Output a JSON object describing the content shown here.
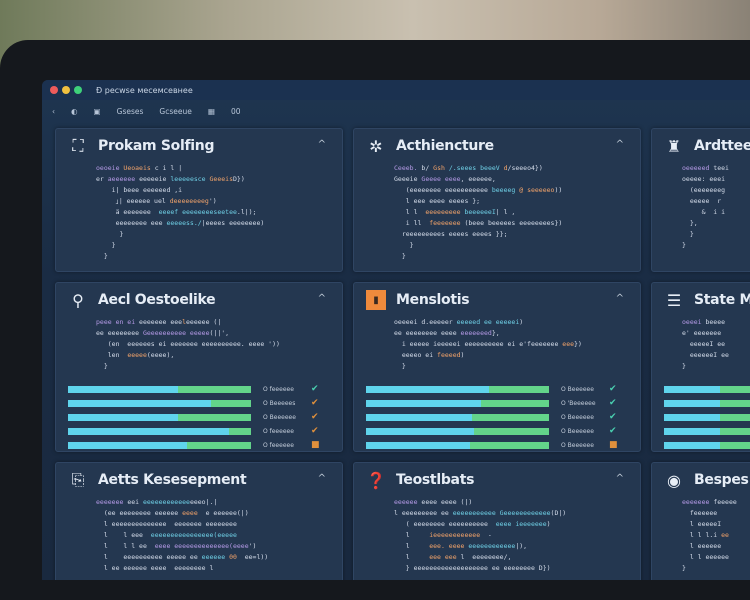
{
  "window": {
    "title": "Ð ресwsе месемсевнее",
    "controls": [
      "#ee5b5b",
      "#f0c040",
      "#3ed07a"
    ]
  },
  "toolbar": {
    "items": [
      "‹",
      "◐",
      "▣",
      "Gsesеs",
      "Gcseeue",
      "▦",
      "00"
    ]
  },
  "panels": [
    {
      "title": "Prokam Solfing",
      "icon": "puzzle-icon",
      "glyph": "⛶",
      "code": [
        [
          [
            "k",
            "oeoeie "
          ],
          [
            "o",
            "Ueoaeis "
          ],
          [
            "",
            "c i l |"
          ]
        ],
        [
          [
            "",
            "er "
          ],
          [
            "k",
            "aeeeeee "
          ],
          [
            "",
            "eeeeeie "
          ],
          [
            "s",
            "leeeeesce "
          ],
          [
            "o",
            "Geeeis"
          ],
          [
            "",
            "D})"
          ]
        ],
        [
          [
            "",
            "    i| beee eeeeeed ,i"
          ]
        ],
        [
          [
            "",
            "     ｣| eeeeee uel "
          ],
          [
            "o",
            "deeeeeeeeg"
          ],
          [
            "",
            "')"
          ]
        ],
        [
          [
            "",
            "     ä eeeeeee  "
          ],
          [
            "s",
            "eeeef eeeeeeeeseetee"
          ],
          [
            "",
            ".l|);"
          ]
        ],
        [
          [
            "",
            "     eeeeeeee eee "
          ],
          [
            "s",
            "eeeeess./"
          ],
          [
            "",
            "|eeees eeeeeeee)"
          ]
        ],
        [
          [
            "",
            "      }"
          ]
        ],
        [
          [
            "",
            "    }"
          ]
        ],
        [
          [
            "",
            "  }"
          ]
        ]
      ]
    },
    {
      "title": "Acthiencture",
      "icon": "gear-icon",
      "glyph": "✲",
      "code": [
        [
          [
            "k",
            "Ceeeb. "
          ],
          [
            "",
            "b/ "
          ],
          [
            "o",
            "Gsh "
          ],
          [
            "s",
            "/.seees beeeV "
          ],
          [
            "o",
            "d"
          ],
          [
            "",
            "/seeeo4})"
          ]
        ],
        [
          [
            "",
            "Geeeie "
          ],
          [
            "k",
            "Geeee eeee"
          ],
          [
            "",
            ", eeeeee,"
          ]
        ],
        [
          [
            "",
            "   (eeeeeeee eeeeeeeeeee "
          ],
          [
            "s",
            "beeeeg"
          ],
          [
            "o",
            " @ seeeeeo"
          ],
          [
            "",
            "))"
          ]
        ],
        [
          [
            "",
            "   l eee eeee eeees };"
          ]
        ],
        [
          [
            "",
            "   l l  "
          ],
          [
            "o",
            "eeeeeeeee "
          ],
          [
            "s",
            "beeeeeeI"
          ],
          [
            "",
            "| l ,"
          ]
        ],
        [
          [
            "",
            "   i ll  "
          ],
          [
            "o",
            "feeeeeee "
          ],
          [
            "",
            "(beee beeeees eeeeeeees})"
          ]
        ],
        [
          [
            "",
            "  reeeeeeeees eeees eeees }};"
          ]
        ],
        [
          [
            "",
            "    }"
          ]
        ],
        [
          [
            "",
            "  }"
          ]
        ]
      ]
    },
    {
      "title": "Ardtteec",
      "icon": "org-chart-icon",
      "glyph": "♜",
      "code": [
        [
          [
            "k",
            "oeeeeed "
          ],
          [
            "",
            "teei"
          ]
        ],
        [
          [
            "",
            "oeeee: eeei"
          ]
        ],
        [
          [
            "",
            "  (eeeeeeeg"
          ]
        ],
        [
          [
            "",
            "  eeeee  r  "
          ]
        ],
        [
          [
            "",
            "     &  i i"
          ]
        ],
        [
          [
            "",
            "  },"
          ]
        ],
        [
          [
            "",
            "  }"
          ]
        ],
        [
          [
            "",
            "}"
          ]
        ]
      ]
    },
    {
      "title": "Aecl Oestoelike",
      "icon": "search-icon",
      "glyph": "⚲",
      "code": [
        [
          [
            "k",
            "peee en ei "
          ],
          [
            "",
            "eeeeeee eee"
          ],
          [
            "o",
            "l"
          ],
          [
            "",
            "eeeeee (|"
          ]
        ],
        [
          [
            "",
            "ee eeeeeeee "
          ],
          [
            "k",
            "Geeeeeeeeee eeeee"
          ],
          [
            "",
            "(||',"
          ]
        ],
        [
          [
            "",
            "   (en  eeeeees ei eeeeeee eeeeeeeeee. eeee '))"
          ]
        ],
        [
          [
            "",
            "   len  "
          ],
          [
            "o",
            "eeeee"
          ],
          [
            "",
            "(eeee),"
          ]
        ],
        [
          [
            "",
            "  }"
          ]
        ]
      ],
      "bars": [
        {
          "label": "O feeeeee",
          "fill": 0.6,
          "status": "check",
          "color": "#4ad0b0"
        },
        {
          "label": "O Beeeees",
          "fill": 0.78,
          "status": "check",
          "color": "#e0903c"
        },
        {
          "label": "O Beeeeee",
          "fill": 0.6,
          "status": "check",
          "color": "#e0903c"
        },
        {
          "label": "O feeeeee",
          "fill": 0.88,
          "status": "check",
          "color": "#e0903c"
        },
        {
          "label": "O feeeeee",
          "fill": 0.65,
          "status": "square",
          "color": "#e0903c"
        }
      ]
    },
    {
      "title": "Menslotis",
      "icon": "document-icon",
      "glyph": "▮",
      "code": [
        [
          [
            "",
            "oeeeei d.eeeeer "
          ],
          [
            "s",
            "eeeeed ee eeeeei"
          ],
          [
            "",
            ")"
          ]
        ],
        [
          [
            "",
            "ee eeeeeeee eeee "
          ],
          [
            "k",
            "eeeeeeed"
          ],
          [
            "",
            "},"
          ]
        ],
        [
          [
            "",
            "  i eeeee ieeeeei eeeeeeeeee ei e'feeeeeee "
          ],
          [
            "o",
            "eee"
          ],
          [
            "",
            "})"
          ]
        ],
        [
          [
            "",
            "  eeeeo ei "
          ],
          [
            "o",
            "feeeed"
          ],
          [
            "",
            ")"
          ]
        ],
        [
          [
            "",
            "  }"
          ]
        ]
      ],
      "bars": [
        {
          "label": "O Beeeeee",
          "fill": 0.67,
          "status": "check",
          "color": "#4ad0b0"
        },
        {
          "label": "O 'Beeeeee",
          "fill": 0.63,
          "status": "check",
          "color": "#4ad0b0"
        },
        {
          "label": "O Beeeeee",
          "fill": 0.58,
          "status": "check",
          "color": "#4ad0b0"
        },
        {
          "label": "O Beeeeee",
          "fill": 0.59,
          "status": "check",
          "color": "#4ad0b0"
        },
        {
          "label": "O Beeeeee",
          "fill": 0.57,
          "status": "square",
          "color": "#e0903c"
        }
      ]
    },
    {
      "title": "State Ma",
      "icon": "list-icon",
      "glyph": "☰",
      "code": [
        [
          [
            "k",
            "oeeei "
          ],
          [
            "",
            "beeee"
          ]
        ],
        [
          [
            "",
            "e' eeeeeee"
          ]
        ],
        [
          [
            "",
            "  eeeeeI ee"
          ]
        ],
        [
          [
            "",
            "  eeeeeeI ee"
          ]
        ],
        [
          [
            "",
            "}"
          ]
        ]
      ],
      "bars": [
        {
          "fill": 0.6
        },
        {
          "fill": 0.6
        },
        {
          "fill": 0.6
        },
        {
          "fill": 0.6
        },
        {
          "fill": 0.6
        }
      ]
    },
    {
      "title": "Aetts Kesesepment",
      "icon": "clipboard-icon",
      "glyph": "⎘",
      "code": [
        [
          [
            "k",
            "eeeeeee "
          ],
          [
            "",
            "eei "
          ],
          [
            "s",
            "eeeeeeeeeeee"
          ],
          [
            "",
            "eeeo|.|"
          ]
        ],
        [
          [
            "",
            "  (ee eeeeeeee eeeeee "
          ],
          [
            "o",
            "eeee"
          ],
          [
            "",
            "  e eeeeee(|)"
          ]
        ],
        [
          [
            "",
            "  l eeeeeeeeeeeeee  eeeeeee eeeeeeee"
          ]
        ],
        [
          [
            "",
            "  l    l eee  "
          ],
          [
            "s",
            "eeeeeeeeeeeeeeee(eeeee"
          ],
          [
            "",
            ""
          ]
        ],
        [
          [
            "",
            "  l    l l ee  "
          ],
          [
            "k",
            "eeee eeeeeeeeeeeeee(eeee"
          ],
          [
            "",
            "')"
          ]
        ],
        [
          [
            "",
            "  l    eeeeeeeeee eeeee ee "
          ],
          [
            "s",
            "eeeeee "
          ],
          [
            "o",
            "00"
          ],
          [
            "",
            "  ee=l))"
          ]
        ],
        [
          [
            "",
            "  l ee eeeeee eeee  eeeeeeee l"
          ]
        ]
      ]
    },
    {
      "title": "Teostlbats",
      "icon": "chat-icon",
      "glyph": "❓",
      "code": [
        [
          [
            "k",
            "eeeeee "
          ],
          [
            "",
            "eeee eeee (|)"
          ]
        ],
        [
          [
            "",
            "l eeeeeeeee ee "
          ],
          [
            "s",
            "eeeeeeeeeee Geeeeeeeeeeee"
          ],
          [
            "",
            "(D|)"
          ]
        ],
        [
          [
            "",
            "   ( eeeeeeee eeeeeeeeee  "
          ],
          [
            "s",
            "eeee ieeeeeee"
          ],
          [
            "",
            ")"
          ]
        ],
        [
          [
            "",
            "   l     "
          ],
          [
            "o",
            "ieeeeeeeeeeee"
          ],
          [
            "",
            "  -"
          ]
        ],
        [
          [
            "",
            "   l     "
          ],
          [
            "o",
            "eee. eeee "
          ],
          [
            "s",
            "eeeeeeeeeeee"
          ],
          [
            "",
            "|),"
          ]
        ],
        [
          [
            "",
            "   l     "
          ],
          [
            "o",
            "eee eee "
          ],
          [
            "",
            "l  eeeeeeee/,"
          ]
        ],
        [
          [
            "",
            "   } eeeeeeeeeeeeeeeeeee ee eeeeeeee D})"
          ]
        ]
      ]
    },
    {
      "title": "Bespes E",
      "icon": "help-icon",
      "glyph": "◉",
      "code": [
        [
          [
            "k",
            "eeeeeee "
          ],
          [
            "",
            "feeeee"
          ]
        ],
        [
          [
            "",
            "  feeeeee"
          ]
        ],
        [
          [
            "",
            "  l eeeeeI"
          ]
        ],
        [
          [
            "",
            "  l l l.i "
          ],
          [
            "o",
            "ee"
          ]
        ],
        [
          [
            "",
            "  l eeeeee"
          ]
        ],
        [
          [
            "",
            "  l l eeeeee"
          ]
        ],
        [
          [
            "",
            "}"
          ]
        ]
      ]
    }
  ]
}
